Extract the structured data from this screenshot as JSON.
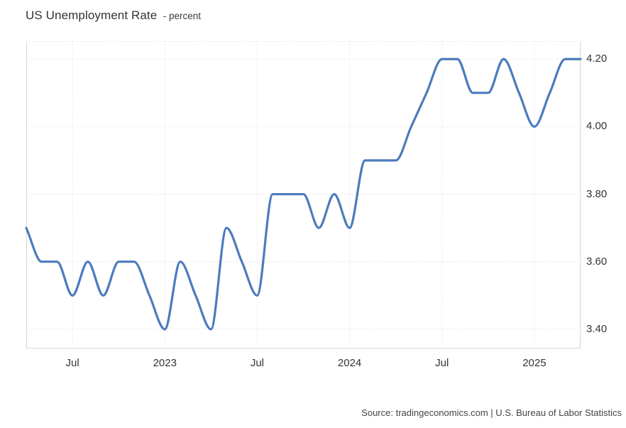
{
  "title": {
    "main": "US Unemployment Rate",
    "subtitle": "- percent"
  },
  "source": "Source: tradingeconomics.com | U.S. Bureau of Labor Statistics",
  "colors": {
    "line": "#4c7bbd",
    "grid": "#e2e2e2",
    "border": "#d6d6d6",
    "text": "#333333",
    "source_text": "#444444"
  },
  "chart_data": {
    "type": "line",
    "style": "smooth-spline",
    "title": "US Unemployment Rate",
    "ylabel": "percent",
    "x": [
      "Apr 2022",
      "May 2022",
      "Jun 2022",
      "Jul 2022",
      "Aug 2022",
      "Sep 2022",
      "Oct 2022",
      "Nov 2022",
      "Dec 2022",
      "Jan 2023",
      "Feb 2023",
      "Mar 2023",
      "Apr 2023",
      "May 2023",
      "Jun 2023",
      "Jul 2023",
      "Aug 2023",
      "Sep 2023",
      "Oct 2023",
      "Nov 2023",
      "Dec 2023",
      "Jan 2024",
      "Feb 2024",
      "Mar 2024",
      "Apr 2024",
      "May 2024",
      "Jun 2024",
      "Jul 2024",
      "Aug 2024",
      "Sep 2024",
      "Oct 2024",
      "Nov 2024",
      "Dec 2024",
      "Jan 2025",
      "Feb 2025",
      "Mar 2025",
      "Apr 2025"
    ],
    "values": [
      3.7,
      3.6,
      3.6,
      3.5,
      3.6,
      3.5,
      3.6,
      3.6,
      3.5,
      3.4,
      3.6,
      3.5,
      3.4,
      3.7,
      3.6,
      3.5,
      3.8,
      3.8,
      3.8,
      3.7,
      3.8,
      3.7,
      3.9,
      3.9,
      3.9,
      4.0,
      4.1,
      4.2,
      4.2,
      4.1,
      4.1,
      4.2,
      4.1,
      4.0,
      4.1,
      4.2,
      4.2
    ],
    "ylim": [
      3.343,
      4.253
    ],
    "yticks": [
      3.4,
      3.6,
      3.8,
      4.0,
      4.2
    ],
    "ytick_labels": [
      "3.40",
      "3.60",
      "3.80",
      "4.00",
      "4.20"
    ],
    "ytick_side": "right",
    "xtick_indices": [
      3,
      9,
      15,
      21,
      27,
      33
    ],
    "xtick_labels": [
      "Jul",
      "2023",
      "Jul",
      "2024",
      "Jul",
      "2025"
    ],
    "grid": true,
    "grid_style": "dotted",
    "legend": false,
    "line_color": "#4c7bbd",
    "line_width": 3.2
  }
}
